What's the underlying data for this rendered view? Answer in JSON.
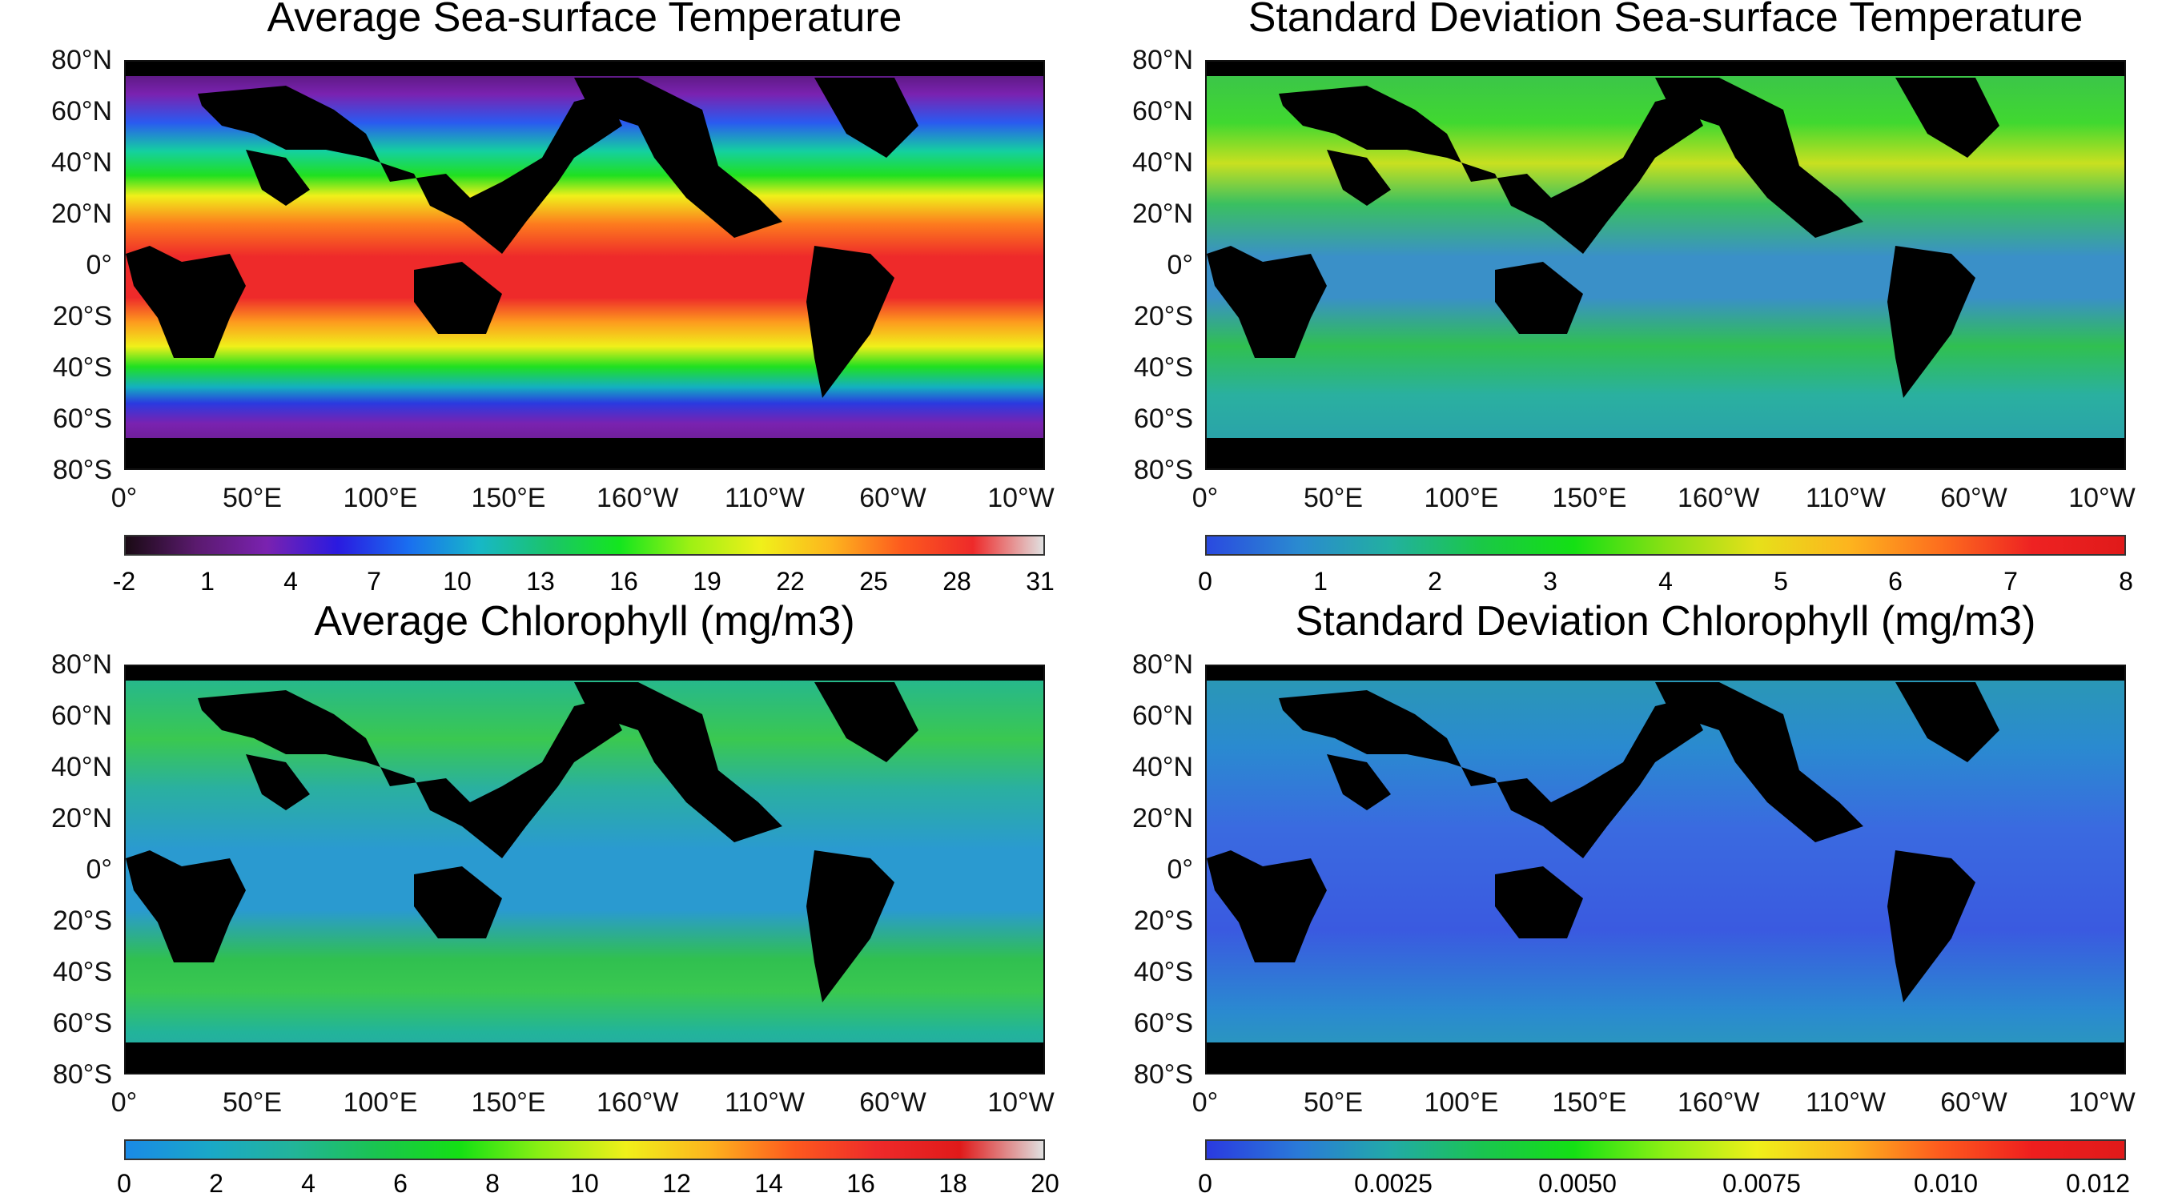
{
  "lat_labels": [
    "80°N",
    "60°N",
    "40°N",
    "20°N",
    "0°",
    "20°S",
    "40°S",
    "60°S",
    "80°S"
  ],
  "lon_labels": [
    "0°",
    "50°E",
    "100°E",
    "150°E",
    "160°W",
    "110°W",
    "60°W",
    "10°W"
  ],
  "panels": [
    {
      "title": "Average Sea-surface Temperature",
      "colormap": [
        "#1a0a14",
        "#5a1a6e",
        "#7a22b0",
        "#2a1ae0",
        "#1a6ef0",
        "#17b7c8",
        "#1ac46a",
        "#14e61e",
        "#9ef014",
        "#f0f01a",
        "#fdb41e",
        "#fd5a1e",
        "#ee2a2a",
        "#e0e0e0"
      ],
      "colorbar_ticks": [
        "-2",
        "1",
        "4",
        "7",
        "10",
        "13",
        "16",
        "19",
        "22",
        "25",
        "28",
        "31"
      ]
    },
    {
      "title": "Standard Deviation Sea-surface Temperature",
      "colormap": [
        "#2a4ae0",
        "#2a8ad0",
        "#22b0a0",
        "#1ac846",
        "#14e014",
        "#8ae014",
        "#e6e01a",
        "#fdb41e",
        "#fd6e1e",
        "#ee2222",
        "#e01a1a"
      ],
      "colorbar_ticks": [
        "0",
        "1",
        "2",
        "3",
        "4",
        "5",
        "6",
        "7",
        "8"
      ]
    },
    {
      "title": "Average Chlorophyll (mg/m3)",
      "colormap": [
        "#1a8ae6",
        "#1aa8c8",
        "#22b49a",
        "#1ac450",
        "#14e014",
        "#8ef014",
        "#f0f01a",
        "#fdb41e",
        "#fd5a1e",
        "#ee2a2a",
        "#e01a1a",
        "#e0e0e0"
      ],
      "colorbar_ticks": [
        "0",
        "2",
        "4",
        "6",
        "8",
        "10",
        "12",
        "14",
        "16",
        "18",
        "20"
      ]
    },
    {
      "title": "Standard Deviation Chlorophyll (mg/m3)",
      "colormap": [
        "#2a3ae0",
        "#2a7ad8",
        "#22aaa8",
        "#1ac450",
        "#14e014",
        "#8ef014",
        "#f0f01a",
        "#fdb41e",
        "#fd5a1e",
        "#ee1e1e",
        "#e01a1a"
      ],
      "colorbar_ticks": [
        "0",
        "0.0025",
        "0.0050",
        "0.0075",
        "0.010",
        "0.012"
      ]
    }
  ]
}
